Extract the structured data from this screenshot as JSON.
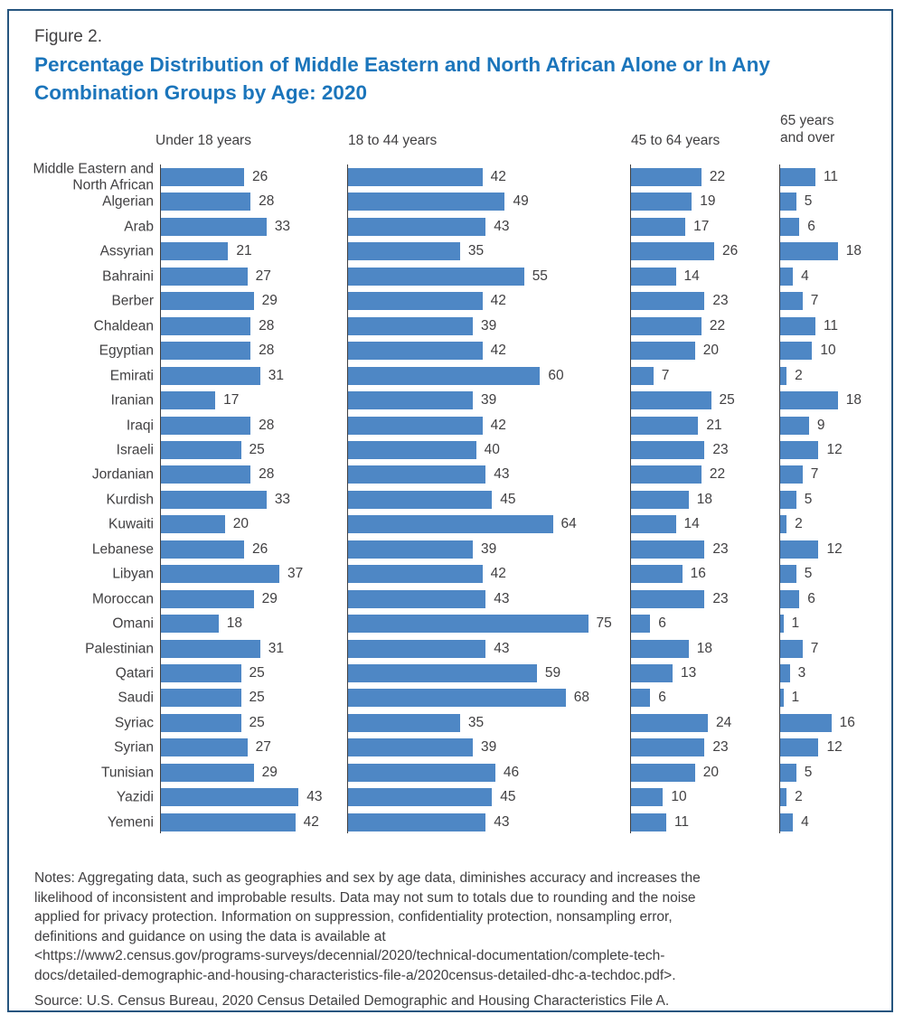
{
  "figure": {
    "label": "Figure 2.",
    "title": "Percentage Distribution of Middle Eastern and North African Alone or In Any Combination Groups by Age: 2020"
  },
  "chart_data": {
    "type": "bar",
    "orientation": "horizontal",
    "unit": "percent",
    "value_labels": true,
    "bar_color": "#4E87C5",
    "title": "Percentage Distribution of Middle Eastern and North African Alone or In Any Combination Groups by Age: 2020",
    "panels": [
      "Under 18 years",
      "18 to 44 years",
      "45 to 64 years",
      "65 years and over"
    ],
    "categories": [
      "Middle Eastern and North African",
      "Algerian",
      "Arab",
      "Assyrian",
      "Bahraini",
      "Berber",
      "Chaldean",
      "Egyptian",
      "Emirati",
      "Iranian",
      "Iraqi",
      "Israeli",
      "Jordanian",
      "Kurdish",
      "Kuwaiti",
      "Lebanese",
      "Libyan",
      "Moroccan",
      "Omani",
      "Palestinian",
      "Qatari",
      "Saudi",
      "Syriac",
      "Syrian",
      "Tunisian",
      "Yazidi",
      "Yemeni"
    ],
    "series": [
      {
        "name": "Under 18 years",
        "values": [
          26,
          28,
          33,
          21,
          27,
          29,
          28,
          28,
          31,
          17,
          28,
          25,
          28,
          33,
          20,
          26,
          37,
          29,
          18,
          31,
          25,
          25,
          25,
          27,
          29,
          43,
          42
        ]
      },
      {
        "name": "18 to 44 years",
        "values": [
          42,
          49,
          43,
          35,
          55,
          42,
          39,
          42,
          60,
          39,
          42,
          40,
          43,
          45,
          64,
          39,
          42,
          43,
          75,
          43,
          59,
          68,
          35,
          39,
          46,
          45,
          43
        ]
      },
      {
        "name": "45 to 64 years",
        "values": [
          22,
          19,
          17,
          26,
          14,
          23,
          22,
          20,
          7,
          25,
          21,
          23,
          22,
          18,
          14,
          23,
          16,
          23,
          6,
          18,
          13,
          6,
          24,
          23,
          20,
          10,
          11
        ]
      },
      {
        "name": "65 years and over",
        "values": [
          11,
          5,
          6,
          18,
          4,
          7,
          11,
          10,
          2,
          18,
          9,
          12,
          7,
          5,
          2,
          12,
          5,
          6,
          1,
          7,
          3,
          1,
          16,
          12,
          5,
          2,
          4
        ]
      }
    ],
    "xlim": [
      0,
      80
    ]
  },
  "notes": {
    "lines": [
      "Notes: Aggregating data, such as geographies and sex by age data, diminishes accuracy and increases the",
      "likelihood of inconsistent and improbable results. Data may not sum to totals due to rounding and the noise",
      "applied for privacy protection. Information on suppression, confidentiality protection, nonsampling error,",
      "definitions and guidance on using the data is available at",
      "<https://www2.census.gov/programs-surveys/decennial/2020/technical-documentation/complete-tech-",
      "docs/detailed-demographic-and-housing-characteristics-file-a/2020census-detailed-dhc-a-techdoc.pdf>."
    ]
  },
  "source": "Source: U.S. Census Bureau, 2020 Census Detailed Demographic and Housing Characteristics File A."
}
